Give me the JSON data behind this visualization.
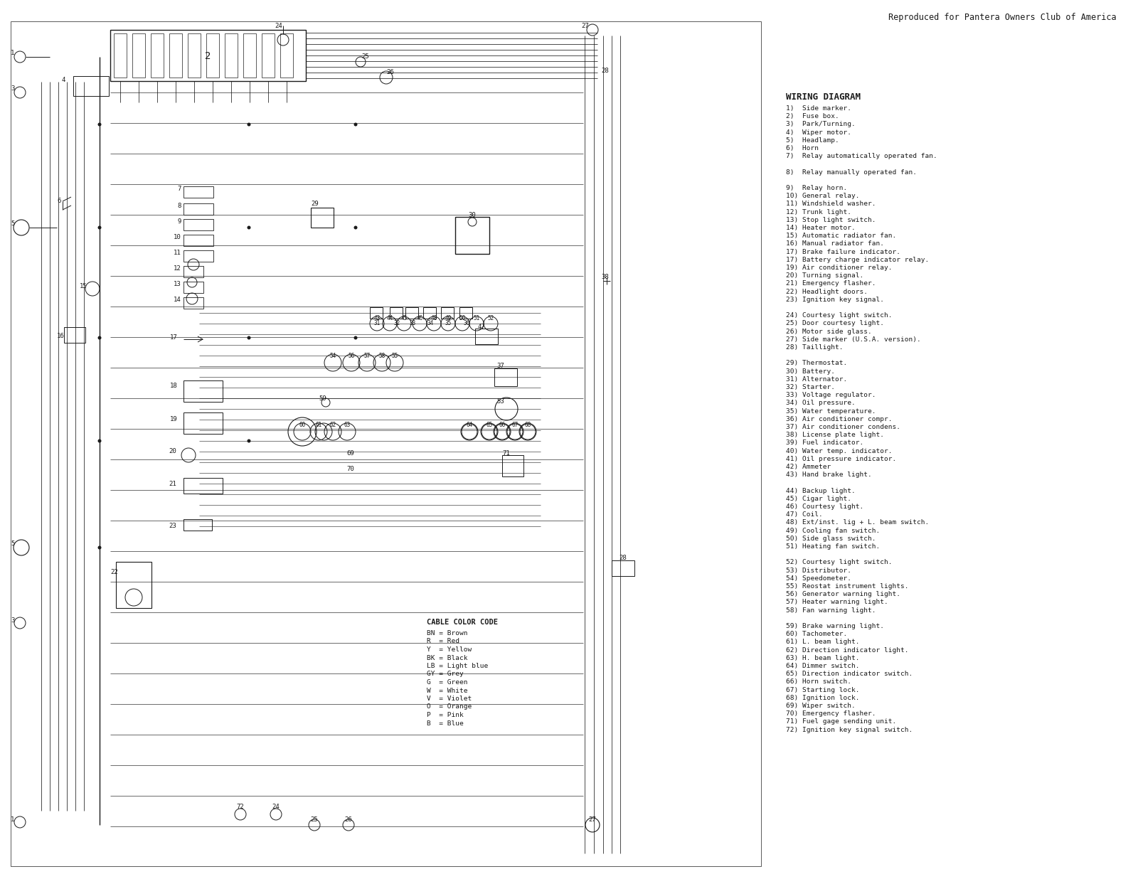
{
  "title": "Reproduced for Pantera Owners Club of America",
  "bg_color": "#ffffff",
  "wiring_title": "WIRING DIAGRAM",
  "component_list": [
    "1)  Side marker.",
    "2)  Fuse box.",
    "3)  Park/Turning.",
    "4)  Wiper motor.",
    "5)  Headlamp.",
    "6)  Horn",
    "7)  Relay automatically operated fan.",
    "",
    "8)  Relay manually operated fan.",
    "",
    "9)  Relay horn.",
    "10) General relay.",
    "11) Windshield washer.",
    "12) Trunk light.",
    "13) Stop light switch.",
    "14) Heater motor.",
    "15) Automatic radiator fan.",
    "16) Manual radiator fan.",
    "17) Brake failure indicator.",
    "17) Battery charge indicator relay.",
    "19) Air conditioner relay.",
    "20) Turning signal.",
    "21) Emergency flasher.",
    "22) Headlight doors.",
    "23) Ignition key signal.",
    "",
    "24) Courtesy light switch.",
    "25) Door courtesy light.",
    "26) Motor side glass.",
    "27) Side marker (U.S.A. version).",
    "28) Taillight.",
    "",
    "29) Thermostat.",
    "30) Battery.",
    "31) Alternator.",
    "32) Starter.",
    "33) Voltage regulator.",
    "34) Oil pressure.",
    "35) Water temperature.",
    "36) Air conditioner compr.",
    "37) Air conditioner condens.",
    "38) License plate light.",
    "39) Fuel indicator.",
    "40) Water temp. indicator.",
    "41) Oil pressure indicator.",
    "42) Ammeter",
    "43) Hand brake light.",
    "",
    "44) Backup light.",
    "45) Cigar light.",
    "46) Courtesy light.",
    "47) Coil.",
    "48) Ext/inst. lig + L. beam switch.",
    "49) Cooling fan switch.",
    "50) Side glass switch.",
    "51) Heating fan switch.",
    "",
    "52) Courtesy light switch.",
    "53) Distributor.",
    "54) Speedometer.",
    "55) Reostat instrument lights.",
    "56) Generator warning light.",
    "57) Heater warning light.",
    "58) Fan warning light.",
    "",
    "59) Brake warning light.",
    "60) Tachometer.",
    "61) L. beam light.",
    "62) Direction indicator light.",
    "63) H. beam light.",
    "64) Dimmer switch.",
    "65) Direction indicator switch.",
    "66) Horn switch.",
    "67) Starting lock.",
    "68) Ignition lock.",
    "69) Wiper switch.",
    "70) Emergency flasher.",
    "71) Fuel gage sending unit.",
    "72) Ignition key signal switch."
  ],
  "cable_color_code_title": "CABLE COLOR CODE",
  "cable_colors": [
    "BN = Brown",
    "R  = Red",
    "Y  = Yellow",
    "BK = Black",
    "LB = Light blue",
    "GY = Grey",
    "G  = Green",
    "W  = White",
    "V  = Violet",
    "O  = Orange",
    "P  = Pink",
    "B  = Blue"
  ],
  "line_color": "#1a1a1a",
  "text_color": "#1a1a1a",
  "figsize": [
    16.0,
    12.36
  ],
  "dpi": 100
}
